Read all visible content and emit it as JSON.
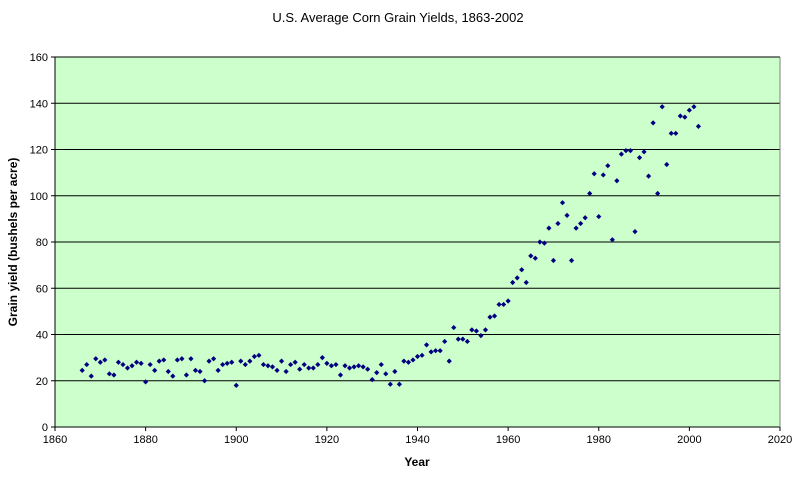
{
  "chart_data": {
    "type": "scatter",
    "title": "U.S. Average Corn Grain Yields, 1863-2002",
    "xlabel": "Year",
    "ylabel": "Grain yield (bushels per acre)",
    "xlim": [
      1860,
      2020
    ],
    "ylim": [
      0,
      160
    ],
    "xticks": [
      1860,
      1880,
      1900,
      1920,
      1940,
      1960,
      1980,
      2000,
      2020
    ],
    "yticks": [
      0,
      20,
      40,
      60,
      80,
      100,
      120,
      140,
      160
    ],
    "grid": "horizontal",
    "legend": "none",
    "colors": {
      "plot_background": "#ccffcc",
      "marker": "#000080",
      "gridline": "#000000"
    },
    "series": [
      {
        "x": [
          1866,
          1867,
          1868,
          1869,
          1870,
          1871,
          1872,
          1873,
          1874,
          1875,
          1876,
          1877,
          1878,
          1879,
          1880,
          1881,
          1882,
          1883,
          1884,
          1885,
          1886,
          1887,
          1888,
          1889,
          1890,
          1891,
          1892,
          1893,
          1894,
          1895,
          1896,
          1897,
          1898,
          1899,
          1900,
          1901,
          1902,
          1903,
          1904,
          1905,
          1906,
          1907,
          1908,
          1909,
          1910,
          1911,
          1912,
          1913,
          1914,
          1915,
          1916,
          1917,
          1918,
          1919,
          1920,
          1921,
          1922,
          1923,
          1924,
          1925,
          1926,
          1927,
          1928,
          1929,
          1930,
          1931,
          1932,
          1933,
          1934,
          1935,
          1936,
          1937,
          1938,
          1939,
          1940,
          1941,
          1942,
          1943,
          1944,
          1945,
          1946,
          1947,
          1948,
          1949,
          1950,
          1951,
          1952,
          1953,
          1954,
          1955,
          1956,
          1957,
          1958,
          1959,
          1960,
          1961,
          1962,
          1963,
          1964,
          1965,
          1966,
          1967,
          1968,
          1969,
          1970,
          1971,
          1972,
          1973,
          1974,
          1975,
          1976,
          1977,
          1978,
          1979,
          1980,
          1981,
          1982,
          1983,
          1984,
          1985,
          1986,
          1987,
          1988,
          1989,
          1990,
          1991,
          1992,
          1993,
          1994,
          1995,
          1996,
          1997,
          1998,
          1999,
          2000,
          2001,
          2002
        ],
        "y": [
          24.5,
          27,
          22,
          29.5,
          28,
          29,
          23,
          22.5,
          28,
          27,
          25.5,
          26.5,
          28,
          27.5,
          19.5,
          27,
          24.5,
          28.5,
          29,
          24,
          22,
          29,
          29.5,
          22.5,
          29.5,
          24.5,
          24,
          20,
          28.5,
          29.5,
          24.5,
          27,
          27.5,
          28,
          18,
          28.5,
          27,
          28.5,
          30.5,
          31,
          27,
          26.5,
          26,
          24.5,
          28.5,
          24,
          27,
          28,
          25,
          27,
          25.5,
          25.5,
          27,
          30,
          27.5,
          26.5,
          27,
          22.5,
          26.5,
          25.5,
          26,
          26.5,
          26,
          25,
          20.5,
          23.5,
          27,
          23,
          18.5,
          24,
          18.5,
          28.5,
          28,
          29,
          30.5,
          31,
          35.5,
          32.5,
          33,
          33,
          37,
          28.5,
          43,
          38,
          38,
          37,
          42,
          41.5,
          39.5,
          42,
          47.5,
          48,
          53,
          53,
          54.5,
          62.5,
          64.5,
          68,
          62.5,
          74,
          73,
          80,
          79.5,
          86,
          72,
          88,
          97,
          91.5,
          72,
          86,
          88,
          90.5,
          101,
          109.5,
          91,
          109,
          113,
          81,
          106.5,
          118,
          119.5,
          119.5,
          84.5,
          116.5,
          119,
          108.5,
          131.5,
          101,
          138.5,
          113.5,
          127,
          127,
          134.5,
          134,
          137,
          138.5,
          130
        ]
      }
    ]
  }
}
